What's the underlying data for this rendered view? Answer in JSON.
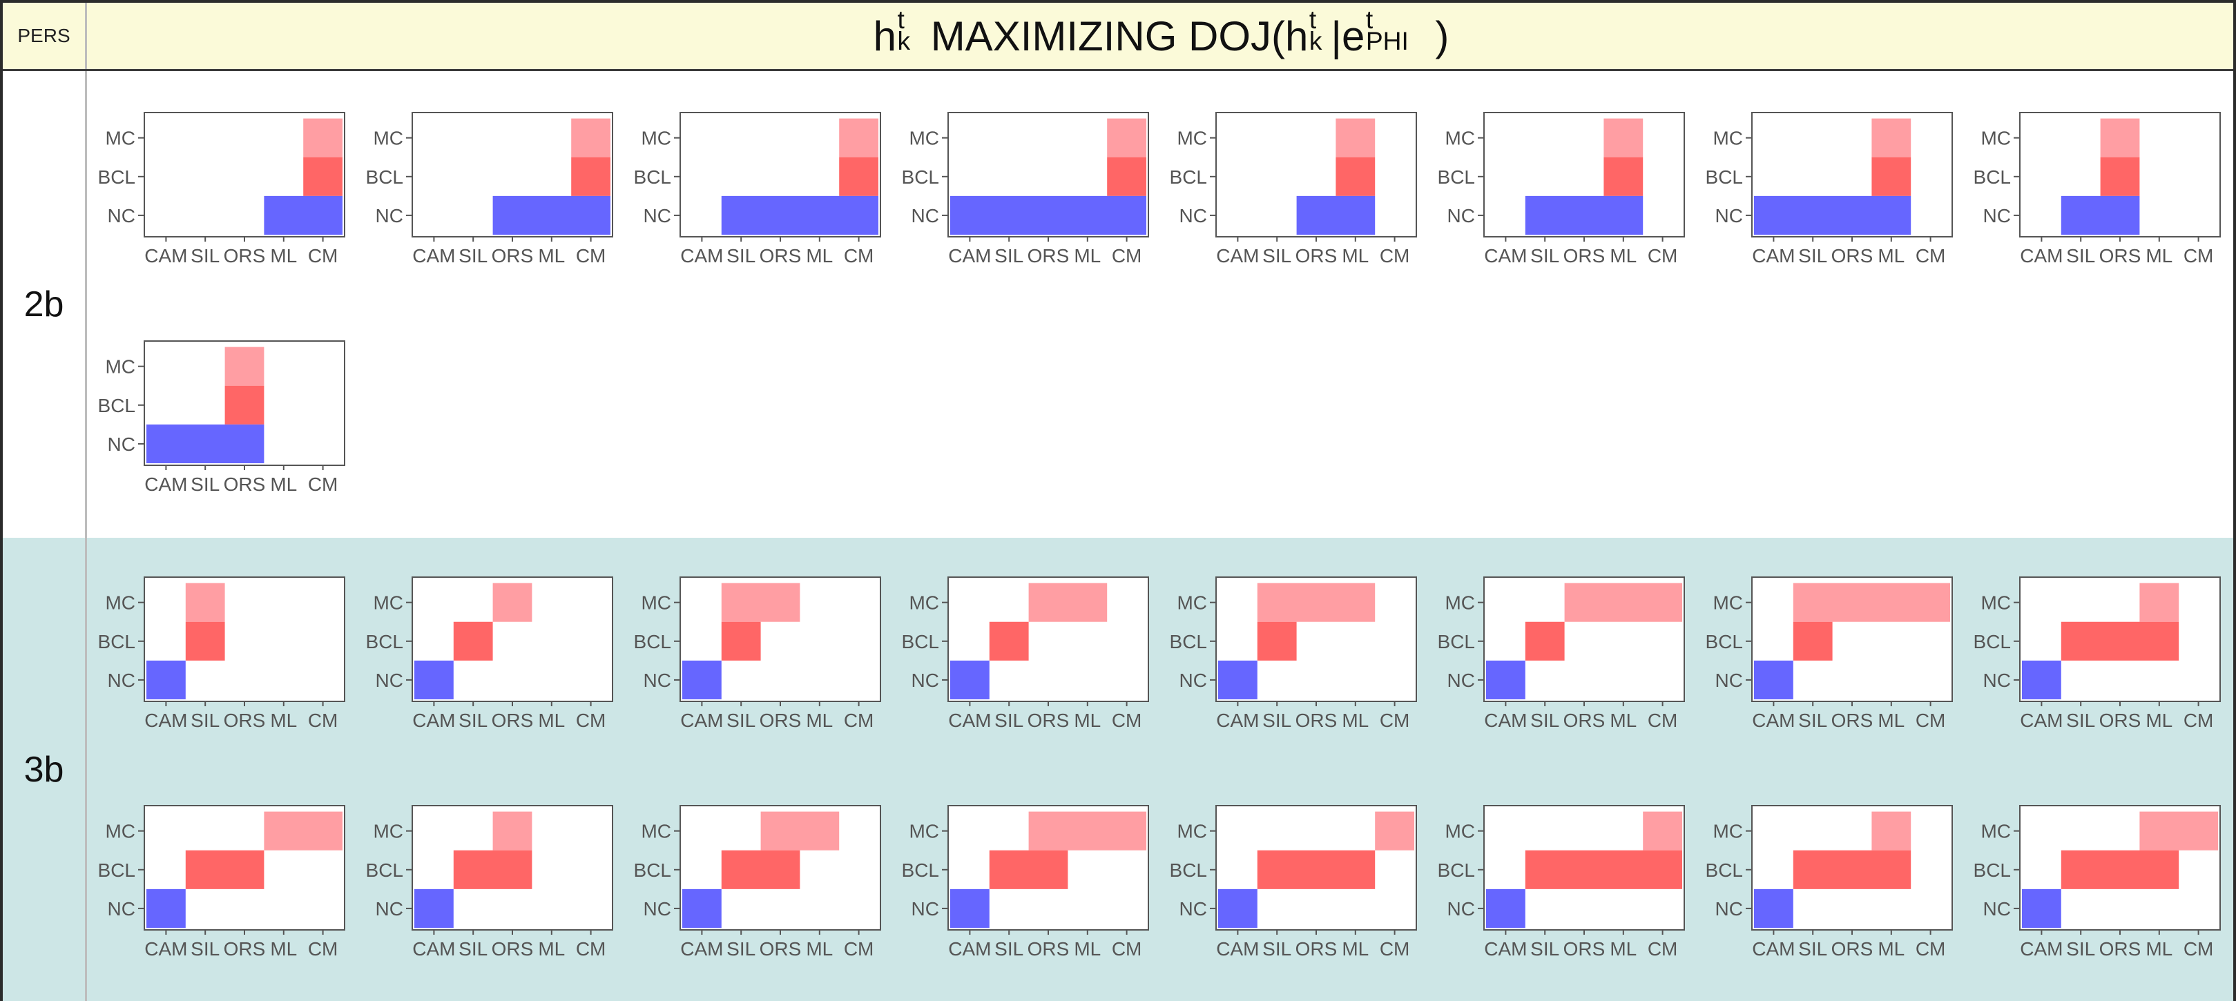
{
  "header": {
    "pers_label": "PERS",
    "title": {
      "h": "h",
      "t1": "t",
      "k1": "k",
      "mid": " MAXIMIZING DOJ(",
      "h2": "h",
      "t2": "t",
      "k2": "k",
      "bar": "|e",
      "t3": "t",
      "phi": "PHI",
      "close": ")"
    }
  },
  "axes": {
    "x_categories": [
      "CAM",
      "SIL",
      "ORS",
      "ML",
      "CM"
    ],
    "y_categories": [
      "NC",
      "BCL",
      "MC"
    ]
  },
  "colors": {
    "nc": "#6666ff",
    "bcl": "#ff6666",
    "mc": "#ff9ea3",
    "section_3b_bg": "#cde6e6",
    "header_bg": "#fbfad9"
  },
  "chart_data": [
    {
      "type": "heatmap",
      "group": "2b",
      "note_ranges": "each bar spans an inclusive range of x_categories indices",
      "panels": [
        {
          "NC": [
            3,
            4
          ],
          "BCL": [
            4,
            4
          ],
          "MC": [
            4,
            4
          ]
        },
        {
          "NC": [
            2,
            4
          ],
          "BCL": [
            4,
            4
          ],
          "MC": [
            4,
            4
          ]
        },
        {
          "NC": [
            1,
            4
          ],
          "BCL": [
            4,
            4
          ],
          "MC": [
            4,
            4
          ]
        },
        {
          "NC": [
            0,
            4
          ],
          "BCL": [
            4,
            4
          ],
          "MC": [
            4,
            4
          ]
        },
        {
          "NC": [
            2,
            3
          ],
          "BCL": [
            3,
            3
          ],
          "MC": [
            3,
            3
          ]
        },
        {
          "NC": [
            1,
            3
          ],
          "BCL": [
            3,
            3
          ],
          "MC": [
            3,
            3
          ]
        },
        {
          "NC": [
            0,
            3
          ],
          "BCL": [
            3,
            3
          ],
          "MC": [
            3,
            3
          ]
        },
        {
          "NC": [
            1,
            2
          ],
          "BCL": [
            2,
            2
          ],
          "MC": [
            2,
            2
          ]
        },
        {
          "NC": [
            0,
            2
          ],
          "BCL": [
            2,
            2
          ],
          "MC": [
            2,
            2
          ]
        }
      ]
    },
    {
      "type": "heatmap",
      "group": "3b",
      "panels": [
        {
          "NC": [
            0,
            0
          ],
          "BCL": [
            1,
            1
          ],
          "MC": [
            1,
            1
          ]
        },
        {
          "NC": [
            0,
            0
          ],
          "BCL": [
            1,
            1
          ],
          "MC": [
            2,
            2
          ]
        },
        {
          "NC": [
            0,
            0
          ],
          "BCL": [
            1,
            1
          ],
          "MC": [
            1,
            2
          ]
        },
        {
          "NC": [
            0,
            0
          ],
          "BCL": [
            1,
            1
          ],
          "MC": [
            2,
            3
          ]
        },
        {
          "NC": [
            0,
            0
          ],
          "BCL": [
            1,
            1
          ],
          "MC": [
            1,
            3
          ]
        },
        {
          "NC": [
            0,
            0
          ],
          "BCL": [
            1,
            1
          ],
          "MC": [
            2,
            4
          ]
        },
        {
          "NC": [
            0,
            0
          ],
          "BCL": [
            1,
            1
          ],
          "MC": [
            1,
            4
          ]
        },
        {
          "NC": [
            0,
            0
          ],
          "BCL": [
            1,
            3
          ],
          "MC": [
            3,
            3
          ]
        },
        {
          "NC": [
            0,
            0
          ],
          "BCL": [
            1,
            2
          ],
          "MC": [
            3,
            4
          ]
        },
        {
          "NC": [
            0,
            0
          ],
          "BCL": [
            1,
            2
          ],
          "MC": [
            2,
            2
          ]
        },
        {
          "NC": [
            0,
            0
          ],
          "BCL": [
            1,
            2
          ],
          "MC": [
            2,
            3
          ]
        },
        {
          "NC": [
            0,
            0
          ],
          "BCL": [
            1,
            2
          ],
          "MC": [
            2,
            4
          ]
        },
        {
          "NC": [
            0,
            0
          ],
          "BCL": [
            1,
            3
          ],
          "MC": [
            4,
            4
          ]
        },
        {
          "NC": [
            0,
            0
          ],
          "BCL": [
            1,
            4
          ],
          "MC": [
            4,
            4
          ]
        },
        {
          "NC": [
            0,
            0
          ],
          "BCL": [
            1,
            3
          ],
          "MC": [
            3,
            3
          ]
        },
        {
          "NC": [
            0,
            0
          ],
          "BCL": [
            1,
            3
          ],
          "MC": [
            3,
            4
          ]
        }
      ]
    }
  ]
}
